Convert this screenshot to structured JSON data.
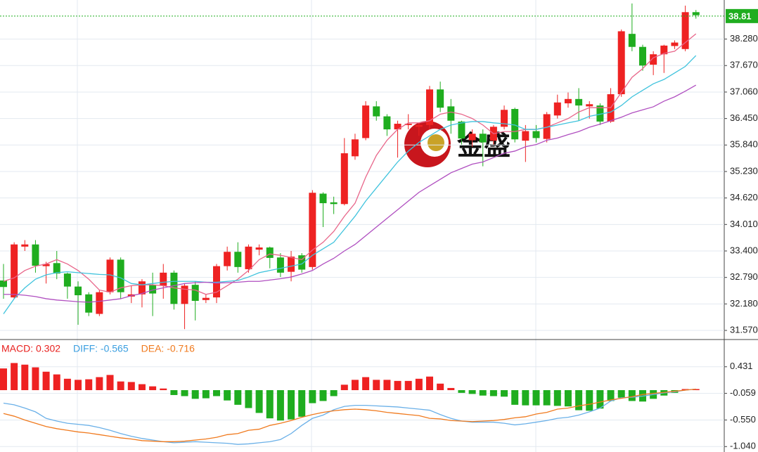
{
  "chart_data": [
    {
      "type": "candlestick",
      "watermark": "金盛",
      "open": [
        32.72,
        32.33,
        33.5,
        33.55,
        33.05,
        33.12,
        32.88,
        32.58,
        32.4,
        31.95,
        32.45,
        33.2,
        32.35,
        32.4,
        32.62,
        32.6,
        32.9,
        32.18,
        32.62,
        32.27,
        32.33,
        33.05,
        33.38,
        32.98,
        33.43,
        33.48,
        33.25,
        32.92,
        33.3,
        33.03,
        34.72,
        34.52,
        34.48,
        35.58,
        36.0,
        36.73,
        36.5,
        36.2,
        36.3,
        36.26,
        36.3,
        37.12,
        36.73,
        36.38,
        35.95,
        36.1,
        35.94,
        36.26,
        36.67,
        35.94,
        36.16,
        35.98,
        36.52,
        36.8,
        36.9,
        36.73,
        36.75,
        36.38,
        37.01,
        38.4,
        38.1,
        37.69,
        37.93,
        38.12,
        38.05,
        38.9
      ],
      "high": [
        33.1,
        33.6,
        33.65,
        33.65,
        33.15,
        33.4,
        32.9,
        32.7,
        32.45,
        32.5,
        33.25,
        33.25,
        32.6,
        32.75,
        32.9,
        33.1,
        32.95,
        32.65,
        32.7,
        32.4,
        33.1,
        33.5,
        33.6,
        33.55,
        33.55,
        33.5,
        33.35,
        33.4,
        33.35,
        34.8,
        34.75,
        34.65,
        36.0,
        36.1,
        36.85,
        36.85,
        36.55,
        36.4,
        36.55,
        36.35,
        37.2,
        37.3,
        36.9,
        36.4,
        36.2,
        36.2,
        36.3,
        36.75,
        36.7,
        36.3,
        36.3,
        36.6,
        37.0,
        37.05,
        37.15,
        36.85,
        36.8,
        37.15,
        38.5,
        39.1,
        38.15,
        38.0,
        38.15,
        38.25,
        39.05,
        38.95
      ],
      "low": [
        32.3,
        32.3,
        33.4,
        32.9,
        32.65,
        32.75,
        32.3,
        31.7,
        31.9,
        31.9,
        32.4,
        32.3,
        32.2,
        32.1,
        31.9,
        32.3,
        32.05,
        31.6,
        31.8,
        32.2,
        32.2,
        32.95,
        32.9,
        32.9,
        33.3,
        33.0,
        32.8,
        32.7,
        32.9,
        32.97,
        33.95,
        34.25,
        34.45,
        35.5,
        35.95,
        36.4,
        36.05,
        35.55,
        36.2,
        36.05,
        36.2,
        36.6,
        36.1,
        35.85,
        35.8,
        35.35,
        35.85,
        36.2,
        35.9,
        35.45,
        35.9,
        35.9,
        36.45,
        36.7,
        36.4,
        36.45,
        36.3,
        36.35,
        36.95,
        38.0,
        37.55,
        37.45,
        37.5,
        38.05,
        38.0,
        38.75
      ],
      "close": [
        32.57,
        33.55,
        33.55,
        33.06,
        33.1,
        32.88,
        32.58,
        32.38,
        31.98,
        32.45,
        33.2,
        32.45,
        32.4,
        32.7,
        32.42,
        32.9,
        32.18,
        32.6,
        32.25,
        32.32,
        33.05,
        33.38,
        33.03,
        33.5,
        33.48,
        33.24,
        32.9,
        33.27,
        32.97,
        34.74,
        34.5,
        34.48,
        35.65,
        35.97,
        36.75,
        36.5,
        36.2,
        36.33,
        36.33,
        36.3,
        37.12,
        36.7,
        36.4,
        35.99,
        36.1,
        35.9,
        36.26,
        36.65,
        35.97,
        36.16,
        36.0,
        36.55,
        36.82,
        36.9,
        36.75,
        36.78,
        36.38,
        37.01,
        38.46,
        38.1,
        37.67,
        37.93,
        38.13,
        38.2,
        38.9,
        38.83
      ],
      "up_color": "#ee2222",
      "down_color": "#1fad1f",
      "series": [
        {
          "color": "#e8668a",
          "values": [
            32.7,
            32.78,
            32.95,
            33.05,
            33.1,
            33.2,
            33.1,
            32.95,
            32.75,
            32.5,
            32.45,
            32.55,
            32.6,
            32.62,
            32.62,
            32.6,
            32.55,
            32.52,
            32.5,
            32.4,
            32.45,
            32.6,
            32.75,
            32.95,
            33.2,
            33.33,
            33.3,
            33.25,
            33.2,
            33.42,
            33.6,
            33.85,
            34.2,
            34.5,
            35.1,
            35.6,
            35.95,
            36.2,
            36.35,
            36.35,
            36.4,
            36.55,
            36.6,
            36.55,
            36.45,
            36.3,
            36.1,
            36.15,
            36.15,
            36.2,
            36.2,
            36.25,
            36.35,
            36.45,
            36.6,
            36.7,
            36.7,
            36.7,
            37.05,
            37.4,
            37.6,
            37.85,
            37.95,
            38.0,
            38.2,
            38.4
          ]
        },
        {
          "color": "#3fc3dd",
          "values": [
            31.95,
            32.3,
            32.55,
            32.75,
            32.85,
            32.9,
            32.92,
            32.9,
            32.88,
            32.86,
            32.85,
            32.78,
            32.65,
            32.62,
            32.65,
            32.68,
            32.7,
            32.7,
            32.7,
            32.68,
            32.68,
            32.7,
            32.72,
            32.8,
            32.9,
            32.95,
            33.0,
            33.05,
            33.1,
            33.3,
            33.45,
            33.6,
            33.9,
            34.2,
            34.55,
            34.85,
            35.15,
            35.45,
            35.7,
            35.9,
            36.05,
            36.2,
            36.3,
            36.35,
            36.38,
            36.38,
            36.35,
            36.33,
            36.3,
            36.2,
            36.2,
            36.25,
            36.3,
            36.35,
            36.4,
            36.5,
            36.55,
            36.6,
            36.75,
            36.95,
            37.1,
            37.25,
            37.35,
            37.5,
            37.65,
            37.9
          ]
        },
        {
          "color": "#b04fc0",
          "values": [
            32.4,
            32.4,
            32.38,
            32.35,
            32.3,
            32.27,
            32.25,
            32.23,
            32.22,
            32.24,
            32.27,
            32.3,
            32.37,
            32.42,
            32.5,
            32.55,
            32.6,
            32.65,
            32.67,
            32.68,
            32.66,
            32.67,
            32.68,
            32.7,
            32.7,
            32.73,
            32.76,
            32.8,
            32.87,
            32.95,
            33.1,
            33.23,
            33.4,
            33.55,
            33.75,
            33.95,
            34.15,
            34.35,
            34.55,
            34.75,
            34.9,
            35.05,
            35.2,
            35.3,
            35.4,
            35.45,
            35.55,
            35.65,
            35.7,
            35.8,
            35.85,
            35.95,
            36.0,
            36.08,
            36.15,
            36.25,
            36.32,
            36.4,
            36.48,
            36.58,
            36.65,
            36.72,
            36.85,
            36.95,
            37.08,
            37.22
          ]
        }
      ],
      "last_price": 38.81,
      "last_price_color": "#1fad1f",
      "ylim": [
        31.36,
        39.18
      ],
      "yticks": [
        {
          "value": 38.28,
          "label": "38.280"
        },
        {
          "value": 37.67,
          "label": "37.670"
        },
        {
          "value": 37.06,
          "label": "37.060"
        },
        {
          "value": 36.45,
          "label": "36.450"
        },
        {
          "value": 35.84,
          "label": "35.840"
        },
        {
          "value": 35.23,
          "label": "35.230"
        },
        {
          "value": 34.62,
          "label": "34.620"
        },
        {
          "value": 34.01,
          "label": "34.010"
        },
        {
          "value": 33.4,
          "label": "33.400"
        },
        {
          "value": 32.79,
          "label": "32.790"
        },
        {
          "value": 32.18,
          "label": "32.180"
        },
        {
          "value": 31.57,
          "label": "31.570"
        }
      ],
      "grid": true
    },
    {
      "type": "macd",
      "header": [
        {
          "text": "MACD: 0.302",
          "color": "#e8201e"
        },
        {
          "text": "DIFF: -0.565",
          "color": "#3b9fe0"
        },
        {
          "text": "DEA: -0.716",
          "color": "#f07a1e"
        }
      ],
      "values": [
        0.4,
        0.5,
        0.47,
        0.42,
        0.34,
        0.29,
        0.21,
        0.19,
        0.2,
        0.24,
        0.28,
        0.16,
        0.15,
        0.11,
        0.07,
        0.03,
        -0.09,
        -0.11,
        -0.16,
        -0.15,
        -0.11,
        -0.19,
        -0.27,
        -0.33,
        -0.42,
        -0.52,
        -0.56,
        -0.54,
        -0.49,
        -0.24,
        -0.2,
        -0.11,
        0.1,
        0.19,
        0.24,
        0.19,
        0.19,
        0.17,
        0.17,
        0.21,
        0.25,
        0.12,
        0.04,
        -0.05,
        -0.07,
        -0.1,
        -0.11,
        -0.12,
        -0.27,
        -0.28,
        -0.28,
        -0.28,
        -0.29,
        -0.3,
        -0.37,
        -0.38,
        -0.34,
        -0.2,
        -0.14,
        -0.2,
        -0.21,
        -0.16,
        -0.1,
        -0.05,
        0.02,
        0.02
      ],
      "up_color": "#ee2222",
      "down_color": "#1fad1f",
      "series": [
        {
          "color": "#6ab0e8",
          "values": [
            -0.24,
            -0.27,
            -0.33,
            -0.4,
            -0.52,
            -0.57,
            -0.61,
            -0.63,
            -0.65,
            -0.69,
            -0.74,
            -0.8,
            -0.85,
            -0.89,
            -0.92,
            -0.95,
            -0.97,
            -0.96,
            -0.95,
            -0.96,
            -0.97,
            -0.98,
            -1.0,
            -0.99,
            -0.97,
            -0.95,
            -0.91,
            -0.8,
            -0.65,
            -0.52,
            -0.46,
            -0.36,
            -0.3,
            -0.28,
            -0.28,
            -0.29,
            -0.3,
            -0.31,
            -0.33,
            -0.35,
            -0.37,
            -0.45,
            -0.52,
            -0.57,
            -0.59,
            -0.59,
            -0.59,
            -0.61,
            -0.64,
            -0.62,
            -0.59,
            -0.56,
            -0.52,
            -0.5,
            -0.46,
            -0.4,
            -0.33,
            -0.2,
            -0.14,
            -0.13,
            -0.11,
            -0.08,
            -0.05,
            -0.03,
            0.0,
            0.02
          ]
        },
        {
          "color": "#f07a1e",
          "values": [
            -0.43,
            -0.48,
            -0.55,
            -0.61,
            -0.67,
            -0.71,
            -0.74,
            -0.77,
            -0.79,
            -0.82,
            -0.85,
            -0.88,
            -0.9,
            -0.93,
            -0.94,
            -0.95,
            -0.95,
            -0.94,
            -0.92,
            -0.9,
            -0.87,
            -0.82,
            -0.8,
            -0.74,
            -0.72,
            -0.65,
            -0.61,
            -0.56,
            -0.5,
            -0.45,
            -0.41,
            -0.38,
            -0.36,
            -0.35,
            -0.36,
            -0.38,
            -0.41,
            -0.43,
            -0.45,
            -0.47,
            -0.52,
            -0.53,
            -0.56,
            -0.57,
            -0.58,
            -0.57,
            -0.56,
            -0.54,
            -0.51,
            -0.49,
            -0.44,
            -0.41,
            -0.35,
            -0.33,
            -0.29,
            -0.26,
            -0.22,
            -0.18,
            -0.15,
            -0.12,
            -0.08,
            -0.06,
            -0.04,
            -0.02,
            0.0,
            0.02
          ]
        }
      ],
      "ylim": [
        -1.14,
        0.92
      ],
      "yticks": [
        0.431,
        -0.059,
        {
          "value": -0.55,
          "label": "-0.550"
        },
        {
          "value": -1.04,
          "label": "-1.040"
        }
      ],
      "grid": true
    }
  ]
}
